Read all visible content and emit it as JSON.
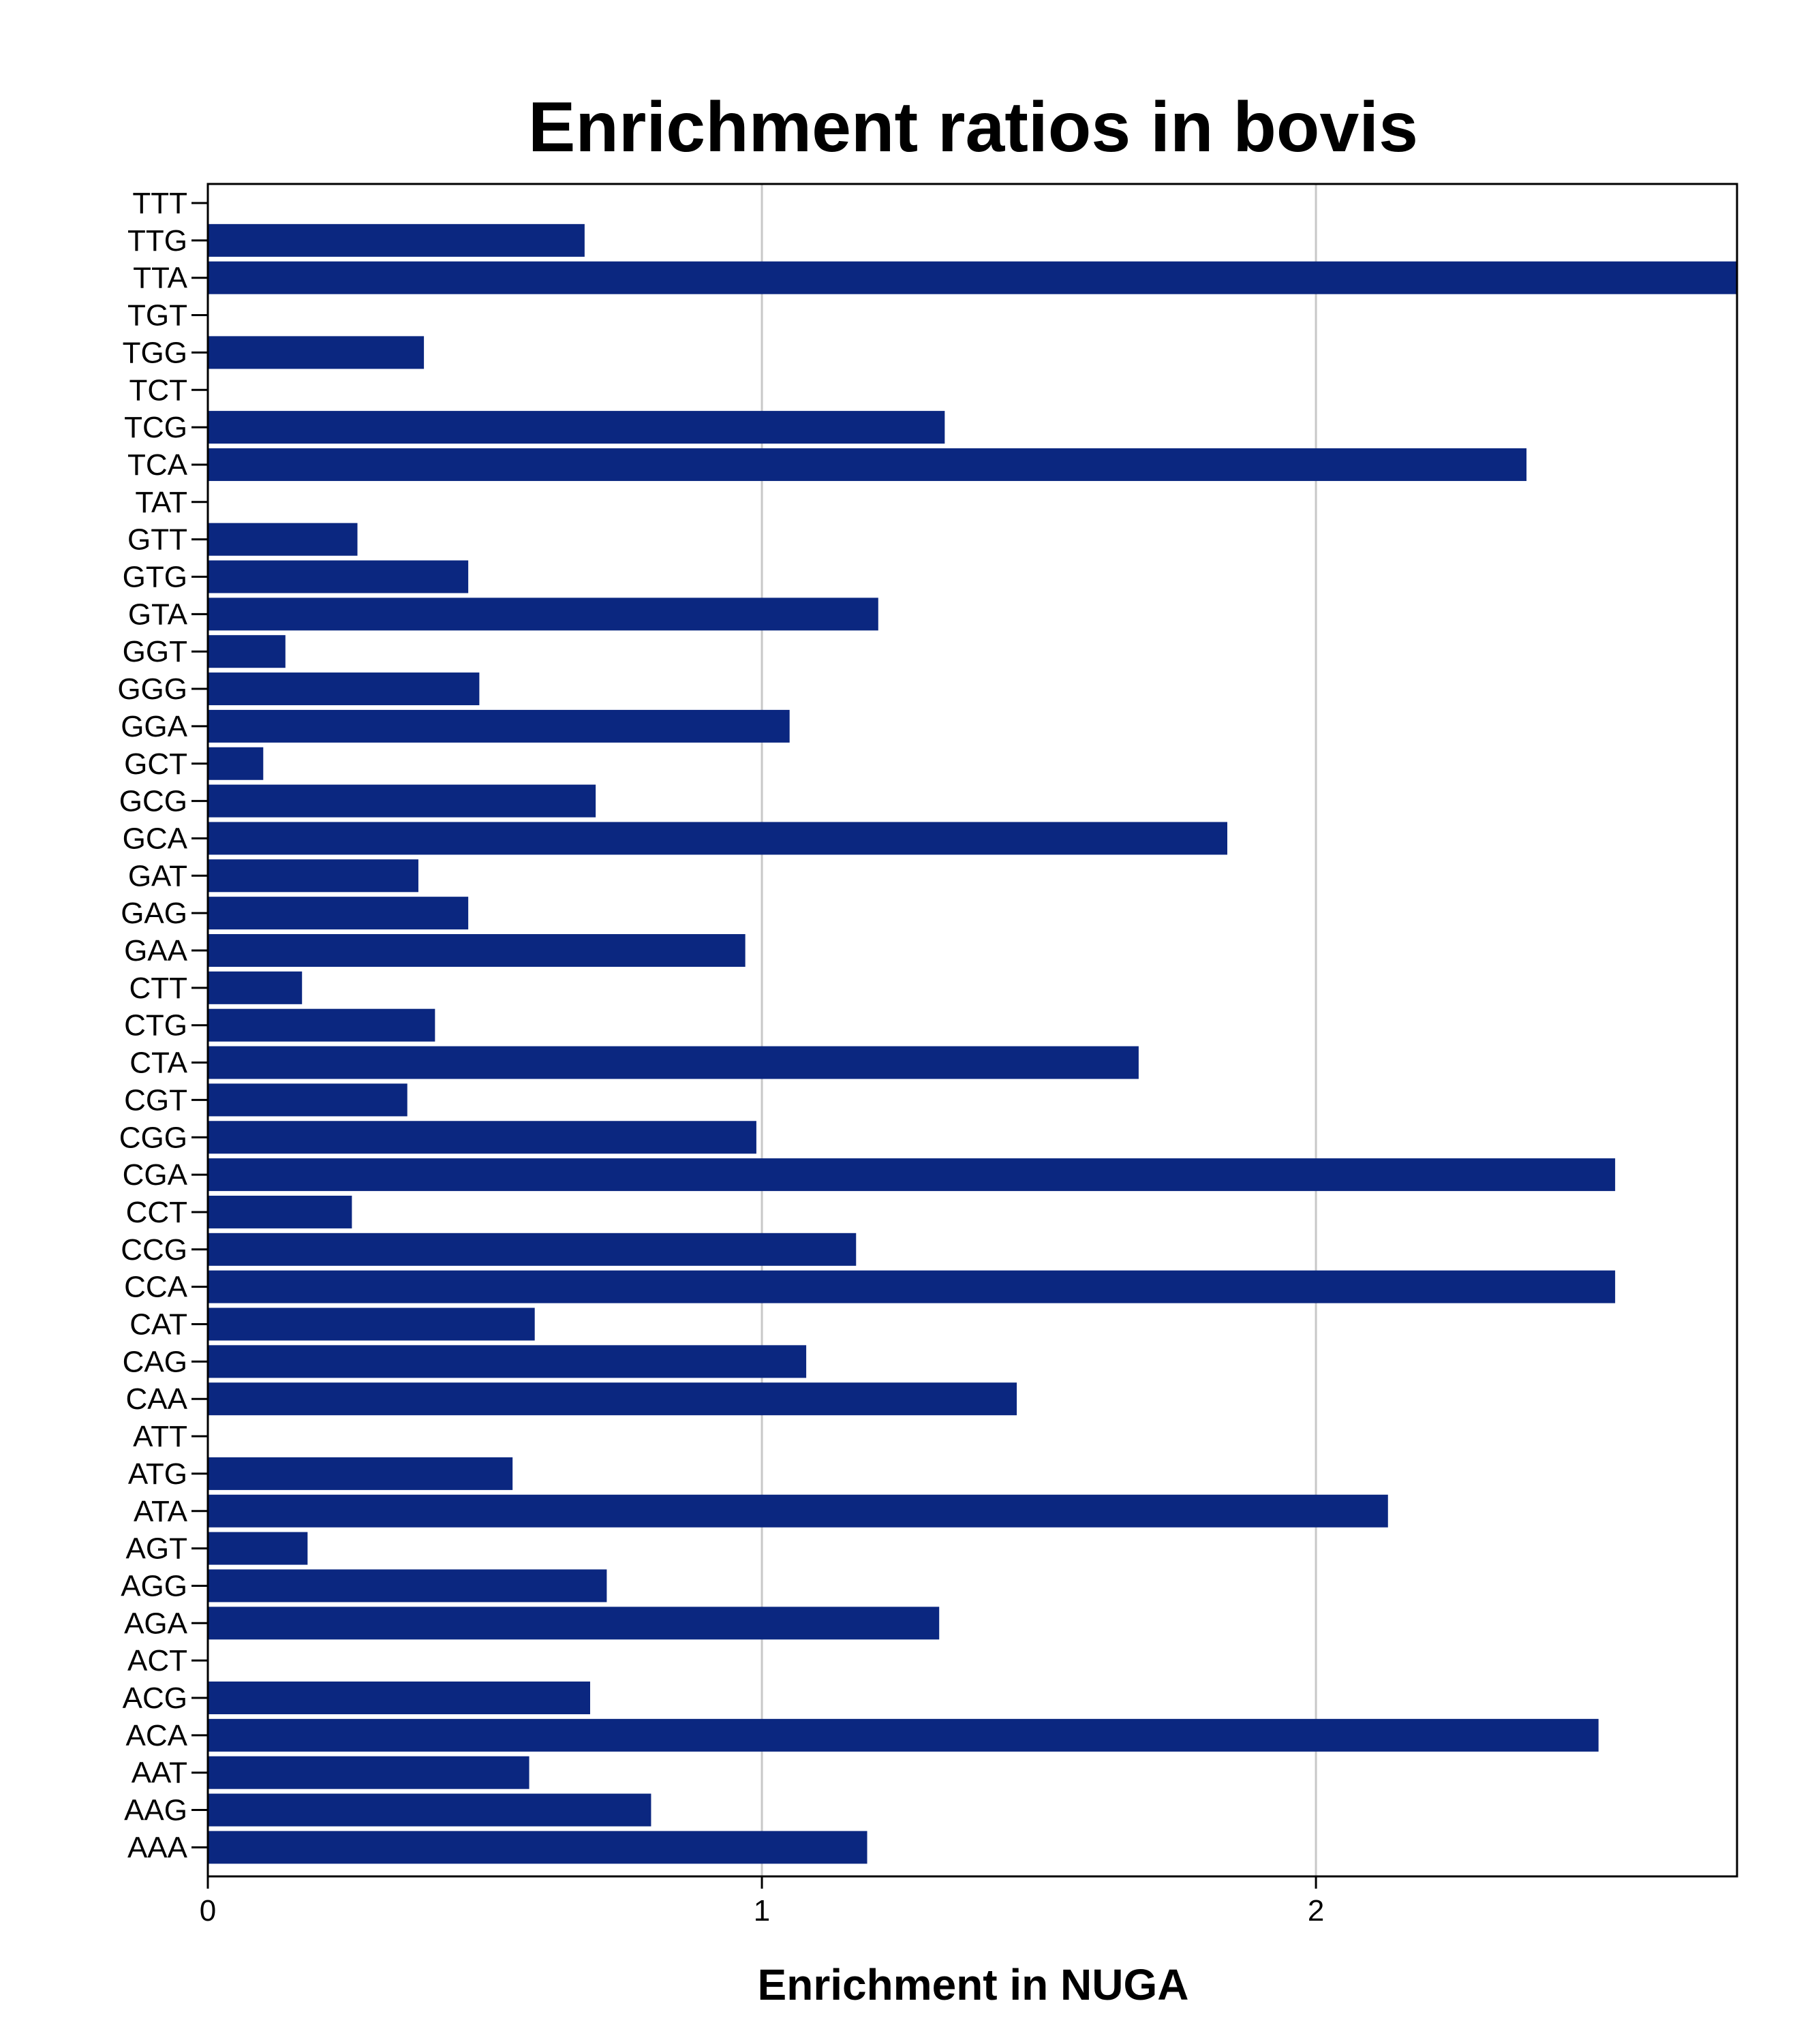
{
  "chart_data": {
    "type": "bar",
    "orientation": "horizontal",
    "title": "Enrichment ratios in bovis",
    "xlabel": "Enrichment in NUGA",
    "ylabel": "",
    "xlim": [
      0,
      2.76
    ],
    "xticks": [
      0,
      1,
      2
    ],
    "grid": "vertical",
    "color": "#0b2780",
    "categories": [
      "TTT",
      "TTG",
      "TTA",
      "TGT",
      "TGG",
      "TCT",
      "TCG",
      "TCA",
      "TAT",
      "GTT",
      "GTG",
      "GTA",
      "GGT",
      "GGG",
      "GGA",
      "GCT",
      "GCG",
      "GCA",
      "GAT",
      "GAG",
      "GAA",
      "CTT",
      "CTG",
      "CTA",
      "CGT",
      "CGG",
      "CGA",
      "CCT",
      "CCG",
      "CCA",
      "CAT",
      "CAG",
      "CAA",
      "ATT",
      "ATG",
      "ATA",
      "AGT",
      "AGG",
      "AGA",
      "ACT",
      "ACG",
      "ACA",
      "AAT",
      "AAG",
      "AAA"
    ],
    "values": [
      0,
      0.68,
      2.76,
      0,
      0.39,
      0,
      1.33,
      2.38,
      0,
      0.27,
      0.47,
      1.21,
      0.14,
      0.49,
      1.05,
      0.1,
      0.7,
      1.84,
      0.38,
      0.47,
      0.97,
      0.17,
      0.41,
      1.68,
      0.36,
      0.99,
      2.54,
      0.26,
      1.17,
      2.54,
      0.59,
      1.08,
      1.46,
      0,
      0.55,
      2.13,
      0.18,
      0.72,
      1.32,
      0,
      0.69,
      2.51,
      0.58,
      0.8,
      1.19
    ]
  }
}
